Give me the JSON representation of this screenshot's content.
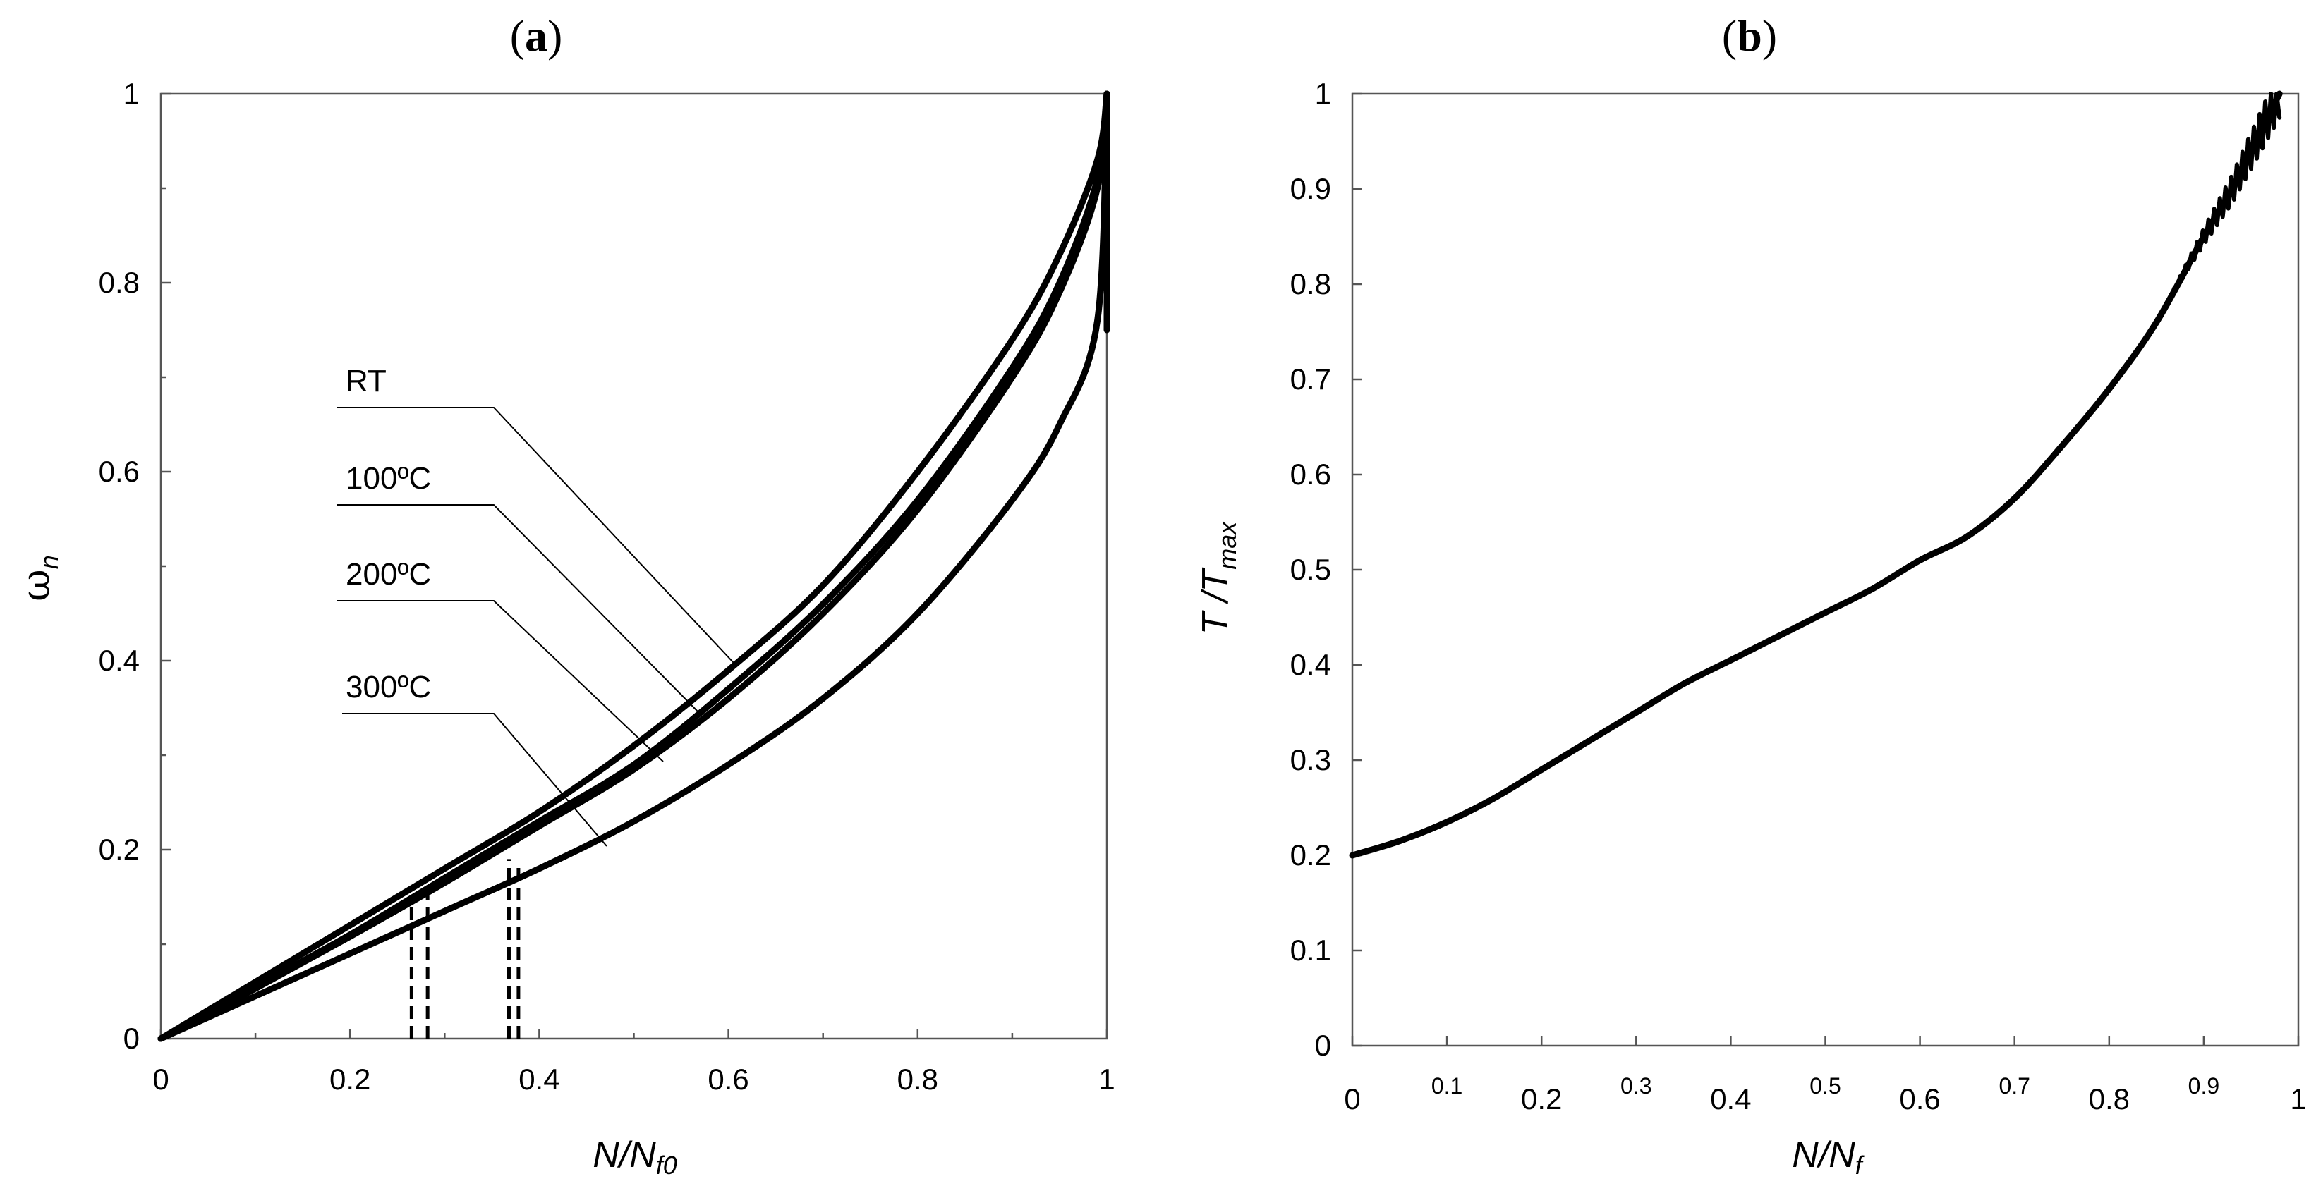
{
  "chart_data": [
    {
      "panel": "(a)",
      "type": "line",
      "xlabel": {
        "main": "N/N",
        "sub": "f0"
      },
      "ylabel": {
        "main": "ω",
        "sub": "n"
      },
      "xlim": [
        0,
        1
      ],
      "ylim": [
        0,
        1
      ],
      "xticks": [
        "0",
        "0.2",
        "0.4",
        "0.6",
        "0.8",
        "1"
      ],
      "yticks": [
        "0",
        "0.2",
        "0.4",
        "0.6",
        "0.8",
        "1"
      ],
      "series": [
        {
          "name": "RT",
          "x": [
            0,
            0.1,
            0.2,
            0.3,
            0.4,
            0.5,
            0.6,
            0.7,
            0.8,
            0.9,
            0.95,
            0.99,
            1
          ],
          "y": [
            0,
            0.06,
            0.12,
            0.18,
            0.24,
            0.31,
            0.39,
            0.48,
            0.6,
            0.74,
            0.83,
            0.93,
            1
          ]
        },
        {
          "name": "100°C",
          "x": [
            0,
            0.1,
            0.2,
            0.3,
            0.4,
            0.5,
            0.6,
            0.7,
            0.8,
            0.9,
            0.95,
            0.99,
            1
          ],
          "y": [
            0,
            0.055,
            0.11,
            0.17,
            0.23,
            0.29,
            0.37,
            0.46,
            0.57,
            0.71,
            0.8,
            0.91,
            1
          ]
        },
        {
          "name": "200°C",
          "x": [
            0,
            0.1,
            0.2,
            0.3,
            0.4,
            0.5,
            0.6,
            0.7,
            0.8,
            0.9,
            0.95,
            0.99,
            1
          ],
          "y": [
            0,
            0.053,
            0.108,
            0.165,
            0.225,
            0.285,
            0.36,
            0.45,
            0.56,
            0.7,
            0.79,
            0.9,
            1
          ]
        },
        {
          "name": "300°C",
          "x": [
            0,
            0.1,
            0.2,
            0.3,
            0.4,
            0.5,
            0.6,
            0.7,
            0.8,
            0.9,
            0.95,
            0.99,
            1
          ],
          "y": [
            0,
            0.045,
            0.09,
            0.135,
            0.18,
            0.23,
            0.29,
            0.36,
            0.45,
            0.57,
            0.65,
            0.76,
            1
          ]
        }
      ],
      "legend": [
        "RT",
        "100ºC",
        "200ºC",
        "300ºC"
      ],
      "annotations": [
        {
          "type": "dashed-vertical",
          "x": 0.265,
          "y_top": 0.15
        },
        {
          "type": "dashed-vertical",
          "x": 0.282,
          "y_top": 0.16
        },
        {
          "type": "dashed-vertical",
          "x": 0.368,
          "y_top": 0.19
        },
        {
          "type": "dashed-vertical",
          "x": 0.378,
          "y_top": 0.185
        }
      ]
    },
    {
      "panel": "(b)",
      "type": "line",
      "xlabel": {
        "main": "N/N",
        "sub": "f"
      },
      "ylabel": {
        "main": "T /T",
        "sub": "max"
      },
      "xlim": [
        0,
        1
      ],
      "ylim": [
        0,
        1
      ],
      "xticks_major": [
        "0",
        "0.2",
        "0.4",
        "0.6",
        "0.8",
        "1"
      ],
      "xticks_minor": [
        "0.1",
        "0.3",
        "0.5",
        "0.7",
        "0.9"
      ],
      "yticks": [
        "0",
        "0.1",
        "0.2",
        "0.3",
        "0.4",
        "0.5",
        "0.6",
        "0.7",
        "0.8",
        "0.9",
        "1"
      ],
      "series": [
        {
          "name": "T/Tmax",
          "x": [
            0,
            0.05,
            0.1,
            0.15,
            0.2,
            0.25,
            0.3,
            0.35,
            0.4,
            0.45,
            0.5,
            0.55,
            0.6,
            0.65,
            0.7,
            0.75,
            0.8,
            0.85,
            0.9,
            0.93,
            0.95,
            0.97,
            0.98
          ],
          "y": [
            0.2,
            0.215,
            0.235,
            0.26,
            0.29,
            0.32,
            0.35,
            0.38,
            0.405,
            0.43,
            0.455,
            0.48,
            0.51,
            0.535,
            0.575,
            0.63,
            0.69,
            0.76,
            0.85,
            0.9,
            0.94,
            0.98,
            1.0
          ]
        }
      ]
    }
  ],
  "panel_a_label": "(a)",
  "panel_b_label": "(b)"
}
